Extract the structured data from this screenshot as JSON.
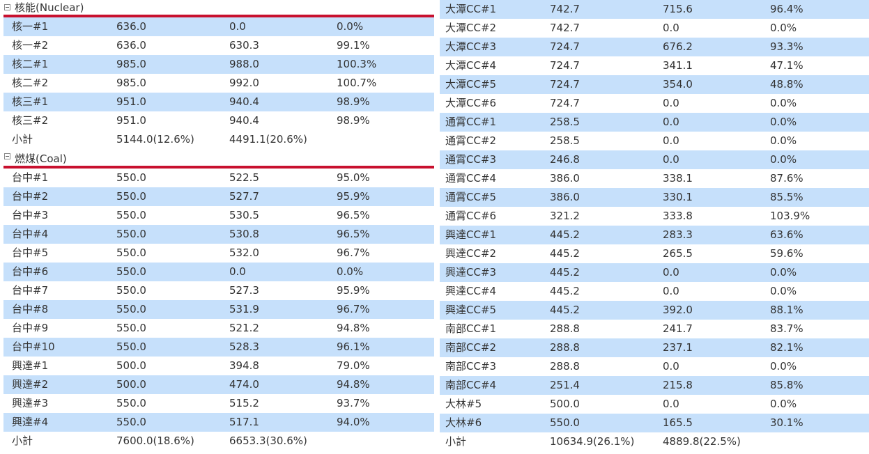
{
  "nuclear": {
    "title": "核能(Nuclear)",
    "rows": [
      [
        "核一#1",
        "636.0",
        "0.0",
        "0.0%"
      ],
      [
        "核一#2",
        "636.0",
        "630.3",
        "99.1%"
      ],
      [
        "核二#1",
        "985.0",
        "988.0",
        "100.3%"
      ],
      [
        "核二#2",
        "985.0",
        "992.0",
        "100.7%"
      ],
      [
        "核三#1",
        "951.0",
        "940.4",
        "98.9%"
      ],
      [
        "核三#2",
        "951.0",
        "940.4",
        "98.9%"
      ]
    ],
    "subtotal": [
      "小計",
      "5144.0(12.6%)",
      "4491.1(20.6%)",
      ""
    ]
  },
  "coal": {
    "title": "燃煤(Coal)",
    "rows": [
      [
        "台中#1",
        "550.0",
        "522.5",
        "95.0%"
      ],
      [
        "台中#2",
        "550.0",
        "527.7",
        "95.9%"
      ],
      [
        "台中#3",
        "550.0",
        "530.5",
        "96.5%"
      ],
      [
        "台中#4",
        "550.0",
        "530.8",
        "96.5%"
      ],
      [
        "台中#5",
        "550.0",
        "532.0",
        "96.7%"
      ],
      [
        "台中#6",
        "550.0",
        "0.0",
        "0.0%"
      ],
      [
        "台中#7",
        "550.0",
        "527.3",
        "95.9%"
      ],
      [
        "台中#8",
        "550.0",
        "531.9",
        "96.7%"
      ],
      [
        "台中#9",
        "550.0",
        "521.2",
        "94.8%"
      ],
      [
        "台中#10",
        "550.0",
        "528.3",
        "96.1%"
      ],
      [
        "興達#1",
        "500.0",
        "394.8",
        "79.0%"
      ],
      [
        "興達#2",
        "500.0",
        "474.0",
        "94.8%"
      ],
      [
        "興達#3",
        "550.0",
        "515.2",
        "93.7%"
      ],
      [
        "興達#4",
        "550.0",
        "517.1",
        "94.0%"
      ]
    ],
    "subtotal": [
      "小計",
      "7600.0(18.6%)",
      "6653.3(30.6%)",
      ""
    ]
  },
  "lng": {
    "rows": [
      [
        "大潭CC#1",
        "742.7",
        "715.6",
        "96.4%"
      ],
      [
        "大潭CC#2",
        "742.7",
        "0.0",
        "0.0%"
      ],
      [
        "大潭CC#3",
        "724.7",
        "676.2",
        "93.3%"
      ],
      [
        "大潭CC#4",
        "724.7",
        "341.1",
        "47.1%"
      ],
      [
        "大潭CC#5",
        "724.7",
        "354.0",
        "48.8%"
      ],
      [
        "大潭CC#6",
        "724.7",
        "0.0",
        "0.0%"
      ],
      [
        "通霄CC#1",
        "258.5",
        "0.0",
        "0.0%"
      ],
      [
        "通霄CC#2",
        "258.5",
        "0.0",
        "0.0%"
      ],
      [
        "通霄CC#3",
        "246.8",
        "0.0",
        "0.0%"
      ],
      [
        "通霄CC#4",
        "386.0",
        "338.1",
        "87.6%"
      ],
      [
        "通霄CC#5",
        "386.0",
        "330.1",
        "85.5%"
      ],
      [
        "通霄CC#6",
        "321.2",
        "333.8",
        "103.9%"
      ],
      [
        "興達CC#1",
        "445.2",
        "283.3",
        "63.6%"
      ],
      [
        "興達CC#2",
        "445.2",
        "265.5",
        "59.6%"
      ],
      [
        "興達CC#3",
        "445.2",
        "0.0",
        "0.0%"
      ],
      [
        "興達CC#4",
        "445.2",
        "0.0",
        "0.0%"
      ],
      [
        "興達CC#5",
        "445.2",
        "392.0",
        "88.1%"
      ],
      [
        "南部CC#1",
        "288.8",
        "241.7",
        "83.7%"
      ],
      [
        "南部CC#2",
        "288.8",
        "237.1",
        "82.1%"
      ],
      [
        "南部CC#3",
        "288.8",
        "0.0",
        "0.0%"
      ],
      [
        "南部CC#4",
        "251.4",
        "215.8",
        "85.8%"
      ],
      [
        "大林#5",
        "500.0",
        "0.0",
        "0.0%"
      ],
      [
        "大林#6",
        "550.0",
        "165.5",
        "30.1%"
      ]
    ],
    "subtotal": [
      "小計",
      "10634.9(26.1%)",
      "4889.8(22.5%)",
      ""
    ]
  },
  "colors": {
    "row_alt": "#c6e0fb",
    "group_bar": "#c8102e",
    "text": "#333333"
  }
}
